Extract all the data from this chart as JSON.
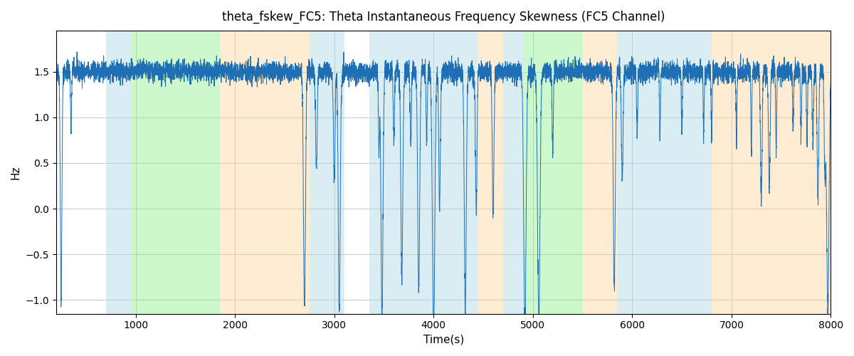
{
  "title": "theta_fskew_FC5: Theta Instantaneous Frequency Skewness (FC5 Channel)",
  "xlabel": "Time(s)",
  "ylabel": "Hz",
  "xlim": [
    200,
    8000
  ],
  "ylim": [
    -1.15,
    1.95
  ],
  "yticks": [
    -1.0,
    -0.5,
    0.0,
    0.5,
    1.0,
    1.5
  ],
  "xticks": [
    1000,
    2000,
    3000,
    4000,
    5000,
    6000,
    7000,
    8000
  ],
  "line_color": "#1f6fb5",
  "background_color": "#ffffff",
  "grid_color": "#b0b0b0",
  "figsize": [
    12,
    5
  ],
  "dpi": 100,
  "colored_bands": [
    {
      "xmin": 700,
      "xmax": 950,
      "color": "#add8e6",
      "alpha": 0.45
    },
    {
      "xmin": 950,
      "xmax": 1850,
      "color": "#90ee90",
      "alpha": 0.45
    },
    {
      "xmin": 1850,
      "xmax": 2750,
      "color": "#ffd59f",
      "alpha": 0.45
    },
    {
      "xmin": 2750,
      "xmax": 3100,
      "color": "#add8e6",
      "alpha": 0.45
    },
    {
      "xmin": 3350,
      "xmax": 4450,
      "color": "#add8e6",
      "alpha": 0.45
    },
    {
      "xmin": 4450,
      "xmax": 4700,
      "color": "#ffd59f",
      "alpha": 0.45
    },
    {
      "xmin": 4700,
      "xmax": 4900,
      "color": "#add8e6",
      "alpha": 0.45
    },
    {
      "xmin": 4900,
      "xmax": 5500,
      "color": "#90ee90",
      "alpha": 0.45
    },
    {
      "xmin": 5500,
      "xmax": 5850,
      "color": "#ffd59f",
      "alpha": 0.45
    },
    {
      "xmin": 5850,
      "xmax": 6800,
      "color": "#add8e6",
      "alpha": 0.45
    },
    {
      "xmin": 6800,
      "xmax": 7500,
      "color": "#ffd59f",
      "alpha": 0.45
    },
    {
      "xmin": 7500,
      "xmax": 8000,
      "color": "#ffd59f",
      "alpha": 0.45
    }
  ],
  "seed": 42,
  "n_points": 7800
}
